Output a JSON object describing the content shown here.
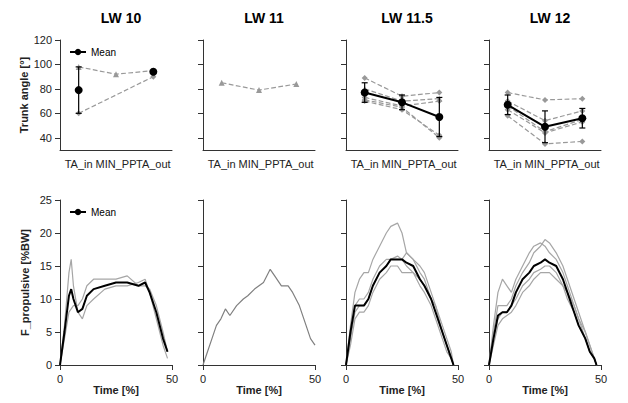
{
  "chart_data": [
    {
      "type": "line",
      "title": "LW 10",
      "categories": [
        "TA_in",
        "MIN_PP",
        "TA_out"
      ],
      "ylabel": "Trunk angle [°]",
      "ylim": [
        30,
        120
      ],
      "yticks": [
        40,
        60,
        80,
        100,
        120
      ],
      "grid": false,
      "legend": "top-left",
      "series": [
        {
          "color": "#999999",
          "marker": "triangle",
          "line_style": "dashed",
          "values": [
            98,
            92,
            95
          ]
        },
        {
          "color": "#999999",
          "marker": "diamond",
          "line_style": "dashed",
          "values": [
            60,
            null,
            90
          ]
        },
        {
          "name": "Mean",
          "color": "#000000",
          "marker": "circle",
          "line_style": "solid",
          "values": [
            79,
            null,
            94
          ],
          "errors": [
            19,
            null,
            null
          ]
        }
      ]
    },
    {
      "type": "line",
      "title": "LW 11",
      "categories": [
        "TA_in",
        "MIN_PP",
        "TA_out"
      ],
      "ylim": [
        30,
        120
      ],
      "yticks": [
        40,
        60,
        80,
        100,
        120
      ],
      "grid": false,
      "tick_labels": "x",
      "series": [
        {
          "color": "#999999",
          "marker": "triangle",
          "line_style": "dashed",
          "values": [
            85,
            79,
            84
          ]
        }
      ]
    },
    {
      "type": "line",
      "title": "LW 11.5",
      "categories": [
        "TA_in",
        "MIN_PP",
        "TA_out"
      ],
      "ylim": [
        30,
        120
      ],
      "yticks": [
        40,
        60,
        80,
        100,
        120
      ],
      "grid": false,
      "tick_labels": "x",
      "series": [
        {
          "color": "#999999",
          "marker": "diamond",
          "line_style": "dashed",
          "values": [
            89,
            74,
            77
          ]
        },
        {
          "color": "#999999",
          "marker": "triangle",
          "line_style": "dashed",
          "values": [
            80,
            70,
            72
          ]
        },
        {
          "color": "#999999",
          "marker": "diamond",
          "line_style": "dashed",
          "values": [
            73,
            66,
            70
          ]
        },
        {
          "color": "#999999",
          "marker": "diamond",
          "line_style": "dashed",
          "values": [
            70,
            63,
            42
          ]
        },
        {
          "color": "#999999",
          "marker": "diamond",
          "line_style": "dashed",
          "values": [
            71,
            65,
            40
          ]
        },
        {
          "name": "Mean",
          "color": "#000000",
          "marker": "circle",
          "line_style": "solid",
          "values": [
            77,
            69,
            57
          ],
          "errors": [
            8,
            6,
            16
          ]
        }
      ]
    },
    {
      "type": "line",
      "title": "LW 12",
      "categories": [
        "TA_in",
        "MIN_PP",
        "TA_out"
      ],
      "ylim": [
        30,
        120
      ],
      "yticks": [
        40,
        60,
        80,
        100,
        120
      ],
      "grid": false,
      "tick_labels": "x",
      "series": [
        {
          "color": "#999999",
          "marker": "diamond",
          "line_style": "dashed",
          "values": [
            77,
            71,
            72
          ]
        },
        {
          "color": "#999999",
          "marker": "diamond",
          "line_style": "dashed",
          "values": [
            70,
            54,
            62
          ]
        },
        {
          "color": "#999999",
          "marker": "diamond",
          "line_style": "dashed",
          "values": [
            66,
            45,
            55
          ]
        },
        {
          "color": "#999999",
          "marker": "diamond",
          "line_style": "dashed",
          "values": [
            63,
            44,
            53
          ]
        },
        {
          "color": "#999999",
          "marker": "diamond",
          "line_style": "dashed",
          "values": [
            58,
            35,
            37
          ]
        },
        {
          "name": "Mean",
          "color": "#000000",
          "marker": "circle",
          "line_style": "solid",
          "values": [
            67,
            49,
            56
          ],
          "errors": [
            8,
            13,
            8
          ]
        }
      ]
    },
    {
      "type": "line",
      "x": [
        0,
        2,
        4,
        5,
        6,
        8,
        10,
        12,
        15,
        20,
        25,
        30,
        35,
        38,
        40,
        43,
        46,
        48
      ],
      "xlabel": "Time [%]",
      "xlim": [
        0,
        50
      ],
      "xticks": [
        0,
        50
      ],
      "ylabel": "F_propulsive [%BW]",
      "ylim": [
        0,
        25
      ],
      "yticks": [
        0,
        5,
        10,
        15,
        20,
        25
      ],
      "grid": false,
      "legend": "top-left",
      "series": [
        {
          "color": "#a6a6a6",
          "marker": "none",
          "line_style": "solid",
          "values": [
            0,
            6,
            14,
            16,
            12,
            8,
            7,
            9,
            10,
            11.5,
            12,
            12,
            12.5,
            13,
            11,
            7,
            3,
            1
          ]
        },
        {
          "color": "#a6a6a6",
          "marker": "none",
          "line_style": "solid",
          "values": [
            0,
            4,
            8,
            8.5,
            9,
            9,
            10,
            12,
            13,
            13,
            13,
            13.5,
            12,
            12,
            11.5,
            9,
            5,
            2
          ]
        },
        {
          "name": "Mean",
          "color": "#000000",
          "marker": "none",
          "line_style": "solid",
          "values": [
            0,
            5,
            10.5,
            11.5,
            10,
            8,
            8.5,
            10.5,
            11.5,
            12,
            12.5,
            12.5,
            12,
            12.5,
            11,
            8,
            4,
            2
          ]
        }
      ]
    },
    {
      "type": "line",
      "x": [
        0,
        2,
        4,
        6,
        8,
        10,
        12,
        15,
        18,
        20,
        23,
        25,
        27,
        30,
        32,
        35,
        38,
        40,
        43,
        46,
        48,
        50
      ],
      "xlabel": "Time [%]",
      "xlim": [
        0,
        50
      ],
      "xticks": [
        0,
        50
      ],
      "ylim": [
        0,
        25
      ],
      "yticks": [
        0,
        5,
        10,
        15,
        20,
        25
      ],
      "grid": false,
      "tick_labels": "x",
      "series": [
        {
          "color": "#808080",
          "marker": "none",
          "line_style": "solid",
          "values": [
            0,
            2,
            4,
            6,
            7,
            8.5,
            7.5,
            9,
            10,
            10.5,
            11.5,
            12,
            12.5,
            14.5,
            13.5,
            12,
            12,
            11,
            9,
            6,
            4,
            3
          ]
        }
      ]
    },
    {
      "type": "line",
      "x": [
        0,
        2,
        4,
        6,
        8,
        10,
        12,
        15,
        18,
        20,
        23,
        25,
        27,
        30,
        33,
        35,
        38,
        40,
        43,
        45,
        47,
        48
      ],
      "xlabel": "Time [%]",
      "xlim": [
        0,
        50
      ],
      "xticks": [
        0,
        50
      ],
      "ylim": [
        0,
        25
      ],
      "yticks": [
        0,
        5,
        10,
        15,
        20,
        25
      ],
      "grid": false,
      "tick_labels": "x",
      "series": [
        {
          "color": "#a6a6a6",
          "marker": "none",
          "line_style": "solid",
          "values": [
            0,
            6,
            11,
            13,
            14,
            14,
            16,
            18,
            20,
            21,
            21.5,
            20,
            17,
            16,
            14,
            13,
            10,
            9,
            6,
            4,
            2,
            0
          ]
        },
        {
          "color": "#a6a6a6",
          "marker": "none",
          "line_style": "solid",
          "values": [
            0,
            4,
            8,
            9,
            9,
            10,
            12,
            14,
            15,
            16,
            16,
            16,
            17,
            16,
            15,
            14,
            11,
            9,
            5,
            3,
            1,
            0
          ]
        },
        {
          "color": "#a6a6a6",
          "marker": "none",
          "line_style": "solid",
          "values": [
            0,
            3,
            7,
            8,
            8,
            9,
            11,
            13,
            14,
            15,
            15,
            14,
            14,
            14,
            13,
            12,
            10,
            8,
            5,
            3,
            1,
            0
          ]
        },
        {
          "color": "#a6a6a6",
          "marker": "none",
          "line_style": "solid",
          "values": [
            0,
            5,
            9,
            10,
            10,
            11,
            13,
            15,
            16,
            16,
            16.5,
            16,
            15,
            14,
            12,
            11,
            9,
            7,
            4,
            2,
            1,
            0
          ]
        },
        {
          "name": "Mean",
          "color": "#000000",
          "marker": "none",
          "line_style": "solid",
          "values": [
            0,
            5,
            9,
            9,
            9,
            10,
            12,
            14,
            15,
            16,
            16,
            16,
            15.5,
            15,
            13,
            12,
            10,
            8,
            5,
            3,
            1,
            0
          ]
        }
      ]
    },
    {
      "type": "line",
      "x": [
        0,
        2,
        4,
        6,
        8,
        10,
        12,
        15,
        18,
        20,
        23,
        25,
        27,
        30,
        33,
        35,
        38,
        40,
        43,
        45,
        47,
        48
      ],
      "xlabel": "Time [%]",
      "xlim": [
        0,
        50
      ],
      "xticks": [
        0,
        50
      ],
      "ylim": [
        0,
        25
      ],
      "yticks": [
        0,
        5,
        10,
        15,
        20,
        25
      ],
      "grid": false,
      "tick_labels": "x",
      "series": [
        {
          "color": "#a6a6a6",
          "marker": "none",
          "line_style": "solid",
          "values": [
            0,
            6,
            11,
            13,
            12,
            11,
            13,
            15,
            17,
            18,
            18.5,
            18,
            17,
            16,
            14,
            12,
            9,
            7,
            5,
            3,
            1,
            0
          ]
        },
        {
          "color": "#a6a6a6",
          "marker": "none",
          "line_style": "solid",
          "values": [
            0,
            5,
            9,
            9,
            9,
            10,
            12,
            14,
            15.5,
            17,
            18,
            19,
            18.5,
            17,
            15,
            13,
            10,
            8,
            5,
            3,
            1,
            0
          ]
        },
        {
          "color": "#a6a6a6",
          "marker": "none",
          "line_style": "solid",
          "values": [
            0,
            4,
            7,
            8,
            8,
            9,
            10,
            12,
            13,
            14,
            14.5,
            15,
            15,
            14,
            12,
            11,
            9,
            7,
            4,
            2,
            1,
            0
          ]
        },
        {
          "color": "#a6a6a6",
          "marker": "none",
          "line_style": "solid",
          "values": [
            0,
            3,
            6,
            7,
            7.5,
            8,
            9,
            11,
            12,
            13,
            14,
            14,
            14,
            13,
            12,
            10,
            8,
            6,
            4,
            2,
            1,
            0
          ]
        },
        {
          "name": "Mean",
          "color": "#000000",
          "marker": "none",
          "line_style": "solid",
          "values": [
            0,
            4,
            7.5,
            8,
            8,
            9,
            11,
            13,
            14,
            15,
            15.5,
            16,
            15.5,
            15,
            13,
            11,
            8,
            6,
            4,
            2,
            1,
            0
          ]
        }
      ]
    }
  ]
}
